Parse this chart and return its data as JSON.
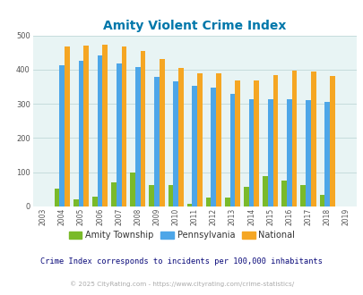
{
  "title": "Amity Violent Crime Index",
  "years": [
    "2003",
    "2004",
    "2005",
    "2006",
    "2007",
    "2008",
    "2009",
    "2010",
    "2011",
    "2012",
    "2013",
    "2014",
    "2015",
    "2016",
    "2017",
    "2018",
    "2019"
  ],
  "amity": [
    0,
    52,
    22,
    30,
    70,
    100,
    62,
    62,
    8,
    25,
    25,
    58,
    90,
    75,
    63,
    33,
    0
  ],
  "pennsylvania": [
    0,
    412,
    425,
    441,
    418,
    408,
    380,
    367,
    353,
    348,
    328,
    314,
    314,
    313,
    311,
    305,
    0
  ],
  "national": [
    0,
    467,
    470,
    474,
    468,
    455,
    432,
    405,
    389,
    390,
    368,
    368,
    384,
    398,
    394,
    381,
    0
  ],
  "amity_color": "#7aba2a",
  "pa_color": "#4da6e8",
  "national_color": "#f5a623",
  "bg_color": "#e8f4f4",
  "title_color": "#0077aa",
  "grid_color": "#c0d8d8",
  "subtitle": "Crime Index corresponds to incidents per 100,000 inhabitants",
  "copyright": "© 2025 CityRating.com - https://www.cityrating.com/crime-statistics/",
  "ylim": [
    0,
    500
  ],
  "yticks": [
    0,
    100,
    200,
    300,
    400,
    500
  ]
}
